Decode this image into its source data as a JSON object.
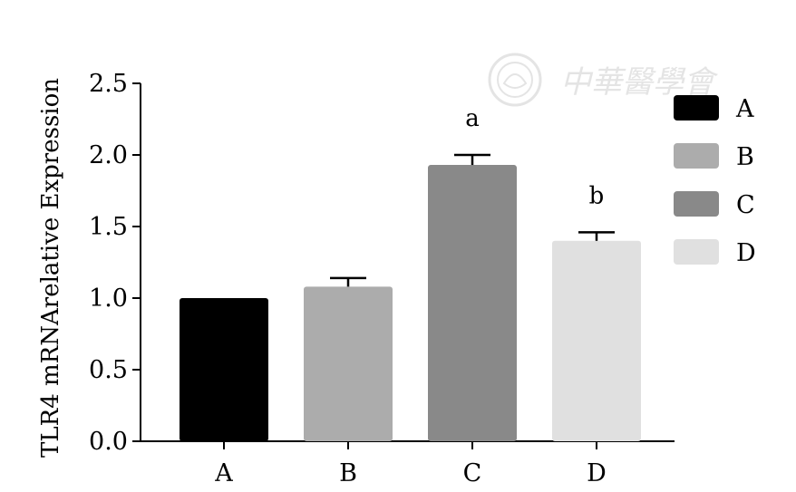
{
  "watermark": {
    "text": "中華醫學會",
    "color": "#e2e2e2"
  },
  "chart_data": {
    "type": "bar",
    "categories": [
      "A",
      "B",
      "C",
      "D"
    ],
    "values": [
      1.0,
      1.08,
      1.93,
      1.4
    ],
    "error": [
      0.0,
      0.06,
      0.07,
      0.06
    ],
    "colors": [
      "#000000",
      "#acacac",
      "#898989",
      "#e0e0e0"
    ],
    "annotations": [
      "",
      "",
      "a",
      "b"
    ],
    "ylabel": "TLR4 mRNArelative Expression",
    "xlabel": "",
    "title": "",
    "ylim": [
      0,
      2.5
    ],
    "yticks": [
      0.0,
      0.5,
      1.0,
      1.5,
      2.0,
      2.5
    ],
    "ytick_labels": [
      "0.0",
      "0.5",
      "1.0",
      "1.5",
      "2.0",
      "2.5"
    ],
    "grid": false,
    "legend": {
      "position": "top-right",
      "entries": [
        "A",
        "B",
        "C",
        "D"
      ]
    }
  }
}
